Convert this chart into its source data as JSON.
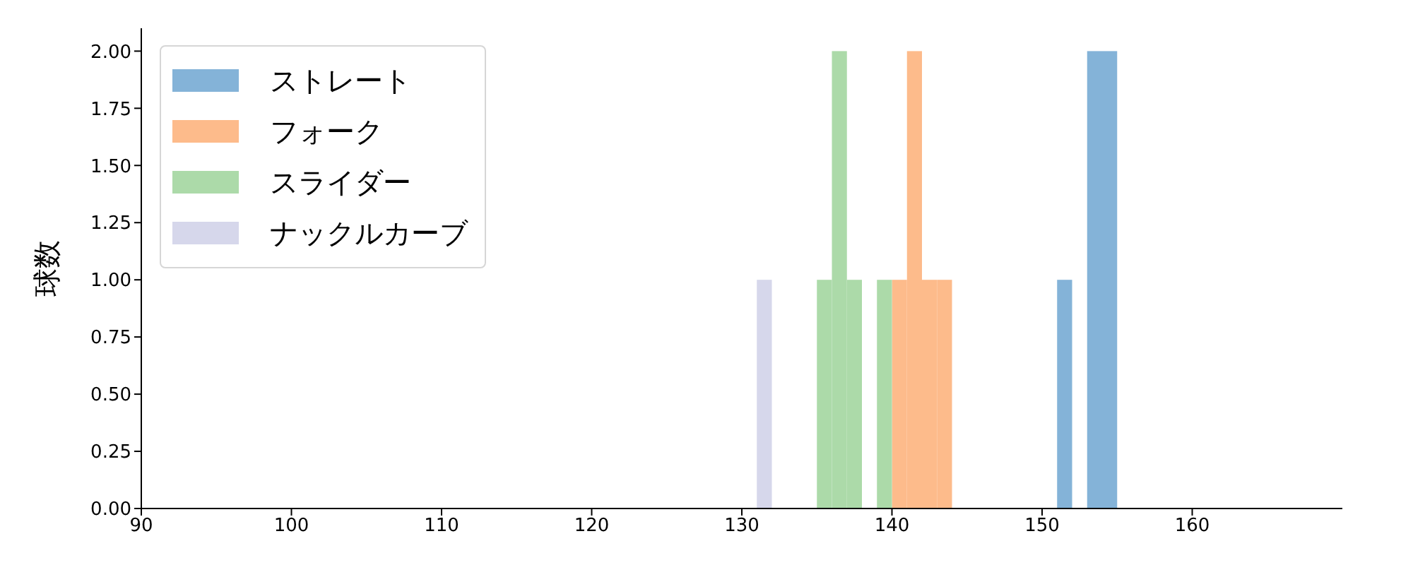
{
  "chart_data": {
    "type": "histogram",
    "ylabel": "球数",
    "xlim": [
      90,
      170
    ],
    "xticks": [
      90,
      100,
      110,
      120,
      130,
      140,
      150,
      160
    ],
    "ylim": [
      0,
      2.1
    ],
    "yticks": [
      {
        "value": 0,
        "label": "0.00"
      },
      {
        "value": 0.25,
        "label": "0.25"
      },
      {
        "value": 0.5,
        "label": "0.50"
      },
      {
        "value": 0.75,
        "label": "0.75"
      },
      {
        "value": 1,
        "label": "1.00"
      },
      {
        "value": 1.25,
        "label": "1.25"
      },
      {
        "value": 1.5,
        "label": "1.50"
      },
      {
        "value": 1.75,
        "label": "1.75"
      },
      {
        "value": 2,
        "label": "2.00"
      }
    ],
    "legend": "top left",
    "grid": false,
    "bins": [
      131,
      132,
      133,
      134,
      135,
      136,
      137,
      138,
      139,
      140,
      141,
      142,
      143,
      144,
      145,
      146,
      147,
      148,
      149,
      150,
      151,
      152,
      153,
      154,
      155
    ],
    "series": [
      {
        "name": "ストレート",
        "color": "#84b3d8",
        "values": [
          0,
          0,
          0,
          0,
          0,
          0,
          0,
          0,
          0,
          0,
          0,
          0,
          0,
          0,
          0,
          0,
          0,
          0,
          0,
          0,
          1,
          0,
          2,
          2
        ]
      },
      {
        "name": "フォーク",
        "color": "#fdbb8b",
        "values": [
          0,
          0,
          0,
          0,
          0,
          0,
          0,
          0,
          0,
          1,
          2,
          1,
          1,
          0,
          0,
          0,
          0,
          0,
          0,
          0,
          0,
          0,
          0,
          0
        ]
      },
      {
        "name": "スライダー",
        "color": "#acdaa9",
        "values": [
          0,
          0,
          0,
          0,
          1,
          2,
          1,
          0,
          1,
          0,
          0,
          0,
          0,
          0,
          0,
          0,
          0,
          0,
          0,
          0,
          0,
          0,
          0,
          0
        ]
      },
      {
        "name": "ナックルカーブ",
        "color": "#d6d7eb",
        "values": [
          1,
          0,
          0,
          0,
          0,
          0,
          0,
          0,
          0,
          0,
          0,
          0,
          0,
          0,
          0,
          0,
          0,
          0,
          0,
          0,
          0,
          0,
          0,
          0
        ]
      }
    ]
  }
}
